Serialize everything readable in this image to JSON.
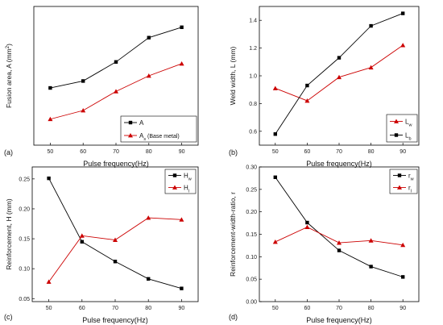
{
  "chart_data": [
    {
      "type": "line",
      "panel_label": "(a)",
      "xlabel": "Pulse frequency(Hz)",
      "ylabel": "Fusion area, A (mm",
      "ylabel_sup": "2",
      "ylabel_tail": ")",
      "x": [
        50,
        60,
        70,
        80,
        90
      ],
      "xlim": [
        45,
        95
      ],
      "ylim": [
        0.2,
        1.0
      ],
      "xticks": [
        "50",
        "60",
        "70",
        "80",
        "90"
      ],
      "yticks": [],
      "legend": "bottom-right",
      "series": [
        {
          "name": "A",
          "name_sub": "",
          "name_tail": "",
          "color": "#000000",
          "marker": "square",
          "values": [
            0.53,
            0.57,
            0.68,
            0.82,
            0.88
          ]
        },
        {
          "name": "A",
          "name_sub": "s",
          "name_tail": " (Base metal)",
          "color": "#cc0000",
          "marker": "triangle",
          "values": [
            0.35,
            0.4,
            0.51,
            0.6,
            0.67
          ]
        }
      ]
    },
    {
      "type": "line",
      "panel_label": "(b)",
      "xlabel": "Pulse frequency(Hz)",
      "ylabel": "Weld width, L (mm)",
      "ylabel_sup": "",
      "ylabel_tail": "",
      "x": [
        50,
        60,
        70,
        80,
        90
      ],
      "xlim": [
        45,
        95
      ],
      "ylim": [
        0.5,
        1.5
      ],
      "xticks": [
        "50",
        "60",
        "70",
        "80",
        "90"
      ],
      "yticks": [
        "0.6",
        "0.8",
        "1.0",
        "1.2",
        "1.4"
      ],
      "legend": "bottom-right",
      "series": [
        {
          "name": "L",
          "name_sub": "w",
          "name_tail": "",
          "color": "#cc0000",
          "marker": "triangle",
          "values": [
            0.91,
            0.82,
            0.99,
            1.06,
            1.22
          ]
        },
        {
          "name": "L",
          "name_sub": "b",
          "name_tail": "",
          "color": "#000000",
          "marker": "square",
          "values": [
            0.58,
            0.93,
            1.13,
            1.36,
            1.45
          ]
        }
      ]
    },
    {
      "type": "line",
      "panel_label": "(c)",
      "xlabel": "Pulse frequency(Hz)",
      "ylabel": "Reinforcement, H (mm)",
      "ylabel_sup": "",
      "ylabel_tail": "",
      "x": [
        50,
        60,
        70,
        80,
        90
      ],
      "xlim": [
        45,
        95
      ],
      "ylim": [
        0.045,
        0.27
      ],
      "xticks": [
        "50",
        "60",
        "70",
        "80",
        "90"
      ],
      "yticks": [
        "0.05",
        "0.10",
        "0.15",
        "0.20",
        "0.25"
      ],
      "legend": "top-right",
      "series": [
        {
          "name": "H",
          "name_sub": "w",
          "name_tail": "",
          "color": "#000000",
          "marker": "square",
          "values": [
            0.251,
            0.145,
            0.112,
            0.083,
            0.067
          ]
        },
        {
          "name": "H",
          "name_sub": "l",
          "name_tail": "",
          "color": "#cc0000",
          "marker": "triangle",
          "values": [
            0.078,
            0.155,
            0.148,
            0.185,
            0.182
          ]
        }
      ]
    },
    {
      "type": "line",
      "panel_label": "(d)",
      "xlabel": "Pulse frequency(Hz)",
      "ylabel": "Reinforcement-width-ratio, r",
      "ylabel_sup": "",
      "ylabel_tail": "",
      "x": [
        50,
        60,
        70,
        80,
        90
      ],
      "xlim": [
        45,
        95
      ],
      "ylim": [
        0.0,
        0.3
      ],
      "xticks": [
        "50",
        "60",
        "70",
        "80",
        "90"
      ],
      "yticks": [
        "0.00",
        "0.05",
        "0.10",
        "0.15",
        "0.20",
        "0.25",
        "0.30"
      ],
      "legend": "top-right",
      "series": [
        {
          "name": "r",
          "name_sub": "w",
          "name_tail": "",
          "color": "#000000",
          "marker": "square",
          "values": [
            0.277,
            0.176,
            0.114,
            0.078,
            0.055
          ]
        },
        {
          "name": "r",
          "name_sub": "l",
          "name_tail": "",
          "color": "#cc0000",
          "marker": "triangle",
          "values": [
            0.133,
            0.166,
            0.131,
            0.136,
            0.126
          ]
        }
      ]
    }
  ]
}
